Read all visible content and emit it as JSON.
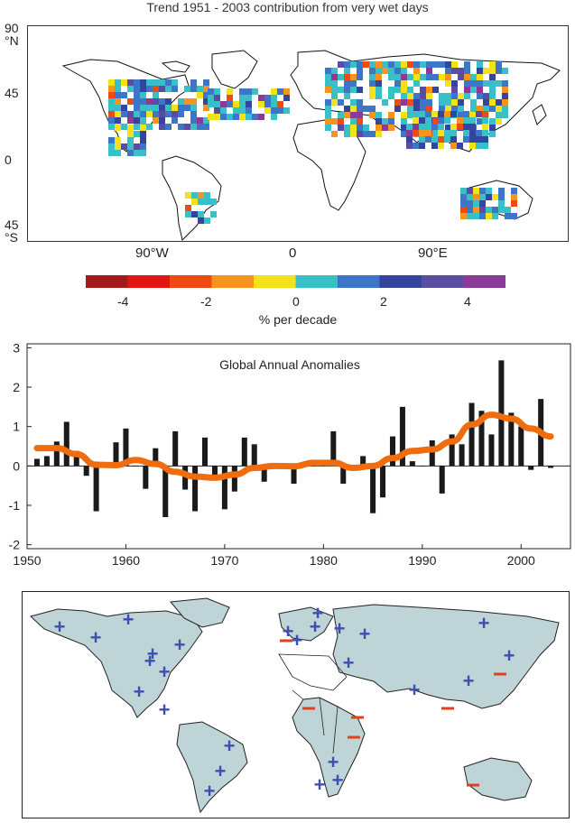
{
  "top_map": {
    "title": "Trend 1951 - 2003 contribution from very wet days",
    "lat_labels": [
      {
        "value": "90",
        "unit": "°N"
      },
      {
        "value": "45",
        "unit": ""
      },
      {
        "value": "0",
        "unit": ""
      },
      {
        "value": "45",
        "unit": "°S"
      }
    ],
    "lon_labels": [
      "90°W",
      "0",
      "90°E"
    ],
    "colorbar": {
      "colors": [
        "#a31a1a",
        "#e31414",
        "#ee4a12",
        "#f7941d",
        "#f2e21a",
        "#39bfc6",
        "#3d76c8",
        "#34459e",
        "#5a4ba3",
        "#8b3a9a"
      ],
      "tick_labels": [
        "-4",
        "-2",
        "0",
        "2",
        "4"
      ],
      "unit": "% per decade"
    }
  },
  "chart_data": {
    "type": "bar",
    "title": "Global Annual Anomalies",
    "xlabel": "",
    "ylabel": "",
    "xlim": [
      1950,
      2005
    ],
    "ylim": [
      -2.1,
      3.1
    ],
    "x_ticks": [
      1950,
      1960,
      1970,
      1980,
      1990,
      2000
    ],
    "y_ticks": [
      -2,
      -1,
      0,
      1,
      2,
      3
    ],
    "grid": false,
    "years": [
      1951,
      1952,
      1953,
      1954,
      1955,
      1956,
      1957,
      1958,
      1959,
      1960,
      1961,
      1962,
      1963,
      1964,
      1965,
      1966,
      1967,
      1968,
      1969,
      1970,
      1971,
      1972,
      1973,
      1974,
      1975,
      1976,
      1977,
      1978,
      1979,
      1980,
      1981,
      1982,
      1983,
      1984,
      1985,
      1986,
      1987,
      1988,
      1989,
      1990,
      1991,
      1992,
      1993,
      1994,
      1995,
      1996,
      1997,
      1998,
      1999,
      2000,
      2001,
      2002,
      2003
    ],
    "values": [
      0.18,
      0.25,
      0.62,
      1.12,
      0.38,
      -0.25,
      -1.15,
      0.0,
      0.6,
      0.95,
      0.0,
      -0.58,
      0.45,
      -1.3,
      0.88,
      -0.6,
      -1.15,
      0.72,
      -0.35,
      -1.1,
      -0.65,
      0.72,
      0.55,
      -0.4,
      0.0,
      0.0,
      -0.45,
      0.0,
      0.0,
      0.0,
      0.88,
      -0.45,
      0.0,
      0.25,
      -1.2,
      -0.8,
      0.75,
      1.5,
      0.12,
      0.0,
      0.65,
      -0.7,
      0.8,
      0.55,
      1.6,
      1.4,
      0.8,
      2.68,
      1.35,
      1.0,
      -0.1,
      1.7,
      -0.05
    ],
    "series": [
      {
        "type": "bar",
        "color": "#1a1a1a"
      },
      {
        "type": "line",
        "color": "#ef6c0f",
        "x": [
          1951,
          1953,
          1955,
          1957,
          1959,
          1961,
          1963,
          1965,
          1967,
          1969,
          1971,
          1973,
          1975,
          1977,
          1979,
          1981,
          1983,
          1985,
          1987,
          1989,
          1991,
          1993,
          1995,
          1997,
          1999,
          2001,
          2003
        ],
        "values": [
          0.45,
          0.45,
          0.3,
          0.03,
          0.02,
          0.15,
          0.05,
          -0.15,
          -0.27,
          -0.3,
          -0.22,
          -0.05,
          0.0,
          -0.01,
          0.08,
          0.08,
          -0.05,
          0.0,
          0.2,
          0.38,
          0.42,
          0.62,
          1.05,
          1.3,
          1.2,
          0.95,
          0.75
        ]
      }
    ]
  },
  "bottom_map": {
    "markers": [
      {
        "sign": "+",
        "color": "#3d4fb0"
      },
      {
        "sign": "-",
        "color": "#e0401c"
      }
    ]
  }
}
